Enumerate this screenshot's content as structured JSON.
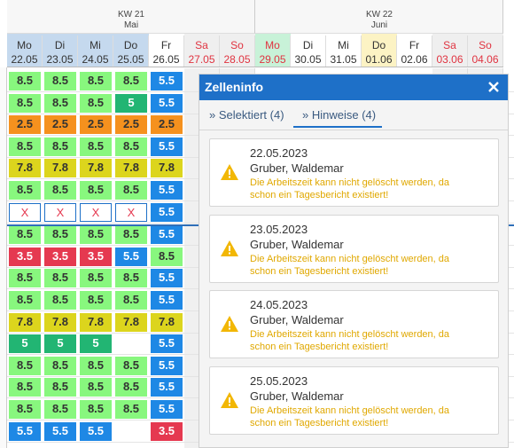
{
  "header": {
    "weeks": [
      {
        "label": "KW 21",
        "month": "Mai"
      },
      {
        "label": "KW 22",
        "month": "Juni"
      }
    ],
    "days": [
      {
        "day": "Mo",
        "date": "22.05"
      },
      {
        "day": "Di",
        "date": "23.05"
      },
      {
        "day": "Mi",
        "date": "24.05"
      },
      {
        "day": "Do",
        "date": "25.05"
      },
      {
        "day": "Fr",
        "date": "26.05"
      },
      {
        "day": "Sa",
        "date": "27.05"
      },
      {
        "day": "So",
        "date": "28.05"
      },
      {
        "day": "Mo",
        "date": "29.05"
      },
      {
        "day": "Di",
        "date": "30.05"
      },
      {
        "day": "Mi",
        "date": "31.05"
      },
      {
        "day": "Do",
        "date": "01.06"
      },
      {
        "day": "Fr",
        "date": "02.06"
      },
      {
        "day": "Sa",
        "date": "03.06"
      },
      {
        "day": "So",
        "date": "04.06"
      }
    ]
  },
  "colors": {
    "8.5": "#88f77e",
    "5.5": "#1e88e5",
    "5": "#22b573",
    "2.5": "#f5911e",
    "7.8": "#dcd51d",
    "3.5": "#e53950",
    "X": "#ffffff"
  },
  "grid": {
    "rows": [
      [
        "8.5",
        "8.5",
        "8.5",
        "8.5",
        "5.5"
      ],
      [
        "8.5",
        "8.5",
        "8.5",
        "5",
        "5.5"
      ],
      [
        "2.5",
        "2.5",
        "2.5",
        "2.5",
        "2.5"
      ],
      [
        "8.5",
        "8.5",
        "8.5",
        "8.5",
        "5.5"
      ],
      [
        "7.8",
        "7.8",
        "7.8",
        "7.8",
        "7.8"
      ],
      [
        "8.5",
        "8.5",
        "8.5",
        "8.5",
        "5.5"
      ],
      [
        "X",
        "X",
        "X",
        "X",
        "5.5"
      ],
      [
        "8.5",
        "8.5",
        "8.5",
        "8.5",
        "5.5"
      ],
      [
        "3.5",
        "3.5",
        "3.5",
        "5.5",
        "8.5"
      ],
      [
        "8.5",
        "8.5",
        "8.5",
        "8.5",
        "5.5"
      ],
      [
        "8.5",
        "8.5",
        "8.5",
        "8.5",
        "5.5"
      ],
      [
        "7.8",
        "7.8",
        "7.8",
        "7.8",
        "7.8"
      ],
      [
        "5",
        "5",
        "5",
        null,
        "5.5"
      ],
      [
        "8.5",
        "8.5",
        "8.5",
        "8.5",
        "5.5"
      ],
      [
        "8.5",
        "8.5",
        "8.5",
        "8.5",
        "5.5"
      ],
      [
        "8.5",
        "8.5",
        "8.5",
        "8.5",
        "5.5"
      ],
      [
        "5.5",
        "5.5",
        "5.5",
        null,
        "3.5"
      ]
    ]
  },
  "panel": {
    "title": "Zelleninfo",
    "tabs": [
      "» Selektiert (4)",
      "» Hinweise (4)"
    ],
    "cards": [
      {
        "date": "22.05.2023",
        "name": "Gruber, Waldemar",
        "message": "Die Arbeitszeit kann nicht gelöscht werden, da schon ein Tagesbericht existiert!"
      },
      {
        "date": "23.05.2023",
        "name": "Gruber, Waldemar",
        "message": "Die Arbeitszeit kann nicht gelöscht werden, da schon ein Tagesbericht existiert!"
      },
      {
        "date": "24.05.2023",
        "name": "Gruber, Waldemar",
        "message": "Die Arbeitszeit kann nicht gelöscht werden, da schon ein Tagesbericht existiert!"
      },
      {
        "date": "25.05.2023",
        "name": "Gruber, Waldemar",
        "message": "Die Arbeitszeit kann nicht gelöscht werden, da schon ein Tagesbericht existiert!"
      }
    ]
  }
}
